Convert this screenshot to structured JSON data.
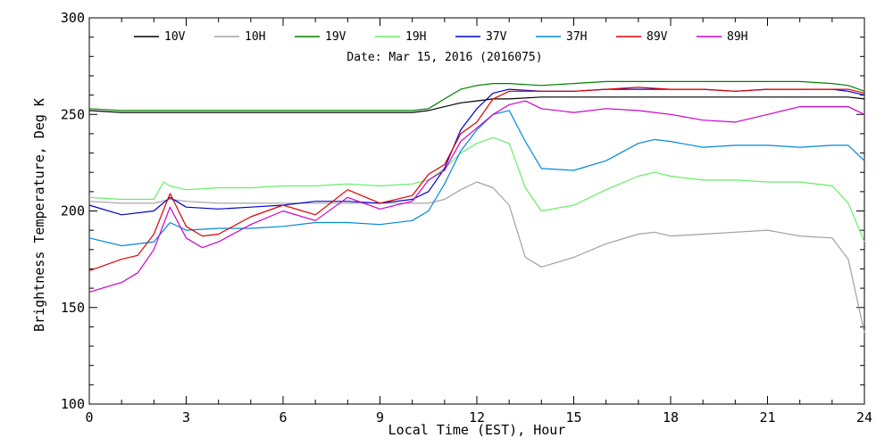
{
  "chart_data": {
    "type": "line",
    "subtitle": "Date: Mar 15, 2016 (2016075)",
    "xlabel": "Local Time (EST), Hour",
    "ylabel": "Brightness Temperature, Deg K",
    "xlim": [
      0,
      24
    ],
    "ylim": [
      100,
      300
    ],
    "xticks": [
      0,
      3,
      6,
      9,
      12,
      15,
      18,
      21,
      24
    ],
    "yticks": [
      100,
      150,
      200,
      250,
      300
    ],
    "grid": false,
    "legend_position": "top",
    "series": [
      {
        "name": "10V",
        "color": "#000000",
        "x": [
          0,
          1,
          2,
          3,
          4,
          5,
          6,
          7,
          8,
          9,
          10,
          10.5,
          11,
          11.5,
          12,
          12.5,
          13,
          14,
          15,
          16,
          17,
          18,
          19,
          20,
          21,
          22,
          23,
          23.5,
          24
        ],
        "y": [
          252,
          251,
          251,
          251,
          251,
          251,
          251,
          251,
          251,
          251,
          251,
          252,
          254,
          256,
          257,
          258,
          258,
          259,
          259,
          259,
          259,
          259,
          259,
          259,
          259,
          259,
          259,
          259,
          258
        ]
      },
      {
        "name": "10H",
        "color": "#a0a0a0",
        "x": [
          0,
          1,
          2,
          2.5,
          3,
          4,
          5,
          6,
          7,
          8,
          9,
          10,
          10.5,
          11,
          11.5,
          12,
          12.5,
          13,
          13.5,
          14,
          15,
          16,
          17,
          17.5,
          18,
          19,
          20,
          21,
          22,
          23,
          23.5,
          24
        ],
        "y": [
          205,
          204,
          204,
          206,
          205,
          204,
          204,
          204,
          204,
          204,
          204,
          204,
          204,
          206,
          211,
          215,
          212,
          203,
          176,
          171,
          176,
          183,
          188,
          189,
          187,
          188,
          189,
          190,
          187,
          186,
          175,
          137
        ]
      },
      {
        "name": "19V",
        "color": "#008000",
        "x": [
          0,
          1,
          2,
          3,
          4,
          5,
          6,
          7,
          8,
          9,
          10,
          10.5,
          11,
          11.5,
          12,
          12.5,
          13,
          14,
          15,
          16,
          17,
          18,
          19,
          20,
          21,
          22,
          23,
          23.5,
          24
        ],
        "y": [
          253,
          252,
          252,
          252,
          252,
          252,
          252,
          252,
          252,
          252,
          252,
          253,
          258,
          263,
          265,
          266,
          266,
          265,
          266,
          267,
          267,
          267,
          267,
          267,
          267,
          267,
          266,
          265,
          262
        ]
      },
      {
        "name": "19H",
        "color": "#66ee66",
        "x": [
          0,
          1,
          2,
          2.3,
          2.5,
          3,
          4,
          5,
          6,
          7,
          8,
          9,
          10,
          10.5,
          11,
          11.5,
          12,
          12.5,
          13,
          13.5,
          14,
          15,
          16,
          17,
          17.5,
          18,
          19,
          20,
          21,
          22,
          23,
          23.5,
          24
        ],
        "y": [
          207,
          206,
          206,
          215,
          213,
          211,
          212,
          212,
          213,
          213,
          214,
          213,
          214,
          216,
          222,
          230,
          235,
          238,
          235,
          212,
          200,
          203,
          211,
          218,
          220,
          218,
          216,
          216,
          215,
          215,
          213,
          204,
          184
        ]
      },
      {
        "name": "37V",
        "color": "#0000cc",
        "x": [
          0,
          1,
          2,
          2.5,
          3,
          4,
          5,
          6,
          7,
          8,
          9,
          10,
          10.5,
          11,
          11.5,
          12,
          12.5,
          13,
          14,
          15,
          16,
          17,
          18,
          19,
          20,
          21,
          22,
          23,
          23.5,
          24
        ],
        "y": [
          203,
          198,
          200,
          207,
          202,
          201,
          202,
          203,
          205,
          205,
          204,
          206,
          210,
          222,
          242,
          253,
          261,
          263,
          262,
          262,
          263,
          263,
          263,
          263,
          262,
          263,
          263,
          263,
          262,
          260
        ]
      },
      {
        "name": "37H",
        "color": "#0088dd",
        "x": [
          0,
          1,
          2,
          2.5,
          3,
          4,
          5,
          6,
          7,
          8,
          9,
          10,
          10.5,
          11,
          11.5,
          12,
          12.5,
          13,
          13.5,
          14,
          15,
          16,
          17,
          17.5,
          18,
          19,
          20,
          21,
          22,
          23,
          23.5,
          24
        ],
        "y": [
          186,
          182,
          184,
          194,
          190,
          191,
          191,
          192,
          194,
          194,
          193,
          195,
          200,
          214,
          231,
          242,
          250,
          252,
          236,
          222,
          221,
          226,
          235,
          237,
          236,
          233,
          234,
          234,
          233,
          234,
          234,
          226
        ]
      },
      {
        "name": "89V",
        "color": "#dd0000",
        "x": [
          0,
          1,
          1.5,
          2,
          2.5,
          3,
          3.5,
          4,
          5,
          6,
          7,
          8,
          9,
          10,
          10.5,
          11,
          11.5,
          12,
          12.5,
          13,
          14,
          15,
          16,
          17,
          18,
          19,
          20,
          21,
          22,
          23,
          23.5,
          24
        ],
        "y": [
          169,
          175,
          177,
          188,
          209,
          192,
          187,
          188,
          197,
          203,
          198,
          211,
          204,
          208,
          219,
          224,
          240,
          246,
          258,
          262,
          262,
          262,
          263,
          264,
          263,
          263,
          262,
          263,
          263,
          263,
          263,
          261
        ]
      },
      {
        "name": "89H",
        "color": "#cc00cc",
        "x": [
          0,
          1,
          1.5,
          2,
          2.5,
          3,
          3.5,
          4,
          5,
          6,
          7,
          8,
          9,
          10,
          10.5,
          11,
          11.5,
          12,
          12.5,
          13,
          13.5,
          14,
          15,
          16,
          17,
          18,
          19,
          20,
          21,
          22,
          23,
          23.5,
          24
        ],
        "y": [
          158,
          163,
          168,
          180,
          202,
          186,
          181,
          184,
          193,
          200,
          195,
          207,
          201,
          205,
          216,
          221,
          236,
          243,
          250,
          255,
          257,
          253,
          251,
          253,
          252,
          250,
          247,
          246,
          250,
          254,
          254,
          254,
          250
        ]
      }
    ]
  }
}
